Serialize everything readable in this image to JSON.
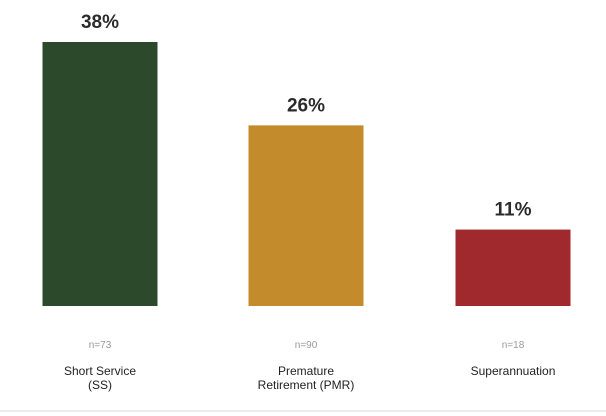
{
  "chart_data": {
    "type": "bar",
    "categories": [
      [
        "Short Service",
        "(SS)"
      ],
      [
        "Premature",
        "Retirement (PMR)"
      ],
      [
        "Superannuation"
      ]
    ],
    "values": [
      38,
      26,
      11
    ],
    "value_labels": [
      "38%",
      "26%",
      "11%"
    ],
    "sample_sizes": [
      "n=73",
      "n=90",
      "n=18"
    ],
    "colors": [
      "#2c4a2b",
      "#c48b2d",
      "#a0292d"
    ],
    "ylim": [
      0,
      38
    ],
    "title": "",
    "xlabel": "",
    "ylabel": "",
    "grid": false,
    "legend": "none"
  }
}
